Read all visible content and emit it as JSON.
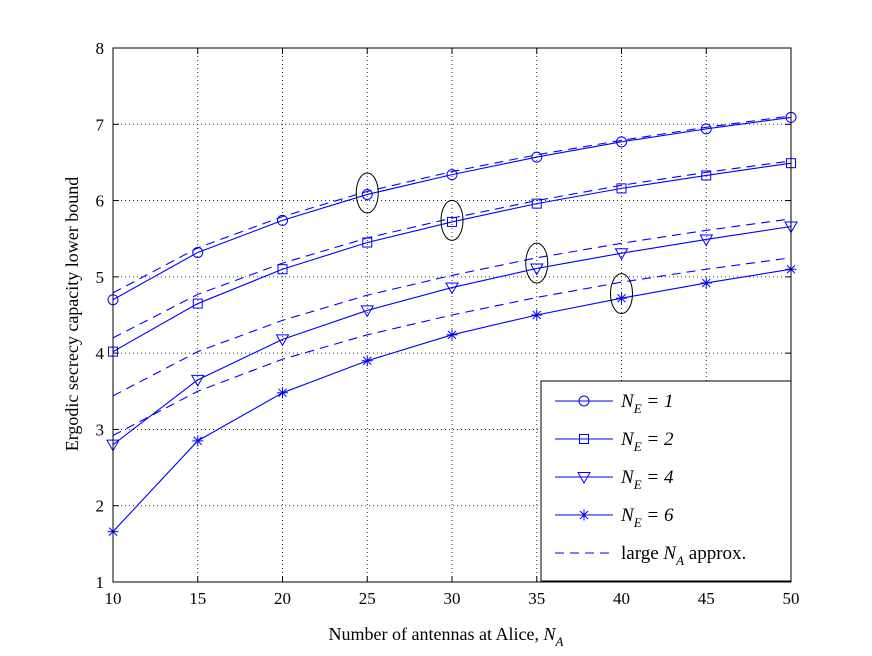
{
  "chart_data": {
    "type": "line",
    "xlabel": "Number of antennas at Alice, N_A",
    "xlabel_parts": {
      "main": "Number of antennas at Alice, ",
      "sym": "N",
      "sub": "A"
    },
    "ylabel": "Ergodic secrecy capacity lower bound",
    "xlim": [
      10,
      50
    ],
    "ylim": [
      1,
      8
    ],
    "xticks": [
      10,
      15,
      20,
      25,
      30,
      35,
      40,
      45,
      50
    ],
    "yticks": [
      1,
      2,
      3,
      4,
      5,
      6,
      7,
      8
    ],
    "grid": true,
    "grid_style": "dotted",
    "legend_position": "bottom-right",
    "line_color": "#0000ff",
    "x": [
      10,
      15,
      20,
      25,
      30,
      35,
      40,
      45,
      50
    ],
    "series": [
      {
        "name": "N_E = 1",
        "sym": "N",
        "sub": "E",
        "rest": " = 1",
        "marker": "circle",
        "style": "solid",
        "values": [
          4.7,
          5.32,
          5.74,
          6.08,
          6.34,
          6.57,
          6.77,
          6.94,
          7.09
        ]
      },
      {
        "name": "N_E = 2",
        "sym": "N",
        "sub": "E",
        "rest": " = 2",
        "marker": "square",
        "style": "solid",
        "values": [
          4.02,
          4.65,
          5.1,
          5.45,
          5.72,
          5.96,
          6.16,
          6.33,
          6.49
        ]
      },
      {
        "name": "N_E = 4",
        "sym": "N",
        "sub": "E",
        "rest": " = 4",
        "marker": "triangle-down",
        "style": "solid",
        "values": [
          2.8,
          3.65,
          4.18,
          4.56,
          4.86,
          5.11,
          5.31,
          5.49,
          5.66
        ]
      },
      {
        "name": "N_E = 6",
        "sym": "N",
        "sub": "E",
        "rest": " = 6",
        "marker": "star",
        "style": "solid",
        "values": [
          1.66,
          2.85,
          3.48,
          3.9,
          4.24,
          4.5,
          4.72,
          4.92,
          5.1
        ]
      },
      {
        "name": "large N_A approx.",
        "pre": "large ",
        "sym": "N",
        "sub": "A",
        "rest": " approx.",
        "marker": "none",
        "style": "dashed",
        "values": [
          4.79,
          5.38,
          5.79,
          6.12,
          6.38,
          6.6,
          6.79,
          6.96,
          7.11
        ]
      },
      {
        "name": "",
        "marker": "none",
        "style": "dashed",
        "legend": false,
        "values": [
          4.2,
          4.77,
          5.18,
          5.51,
          5.77,
          6.0,
          6.2,
          6.37,
          6.52
        ]
      },
      {
        "name": "",
        "marker": "none",
        "style": "dashed",
        "legend": false,
        "values": [
          3.44,
          4.02,
          4.43,
          4.76,
          5.02,
          5.25,
          5.44,
          5.61,
          5.76
        ]
      },
      {
        "name": "",
        "marker": "none",
        "style": "dashed",
        "legend": false,
        "values": [
          2.92,
          3.5,
          3.92,
          4.24,
          4.5,
          4.73,
          4.93,
          5.1,
          5.25
        ]
      }
    ],
    "annotations": [
      {
        "type": "ellipse",
        "x": 25,
        "y": 6.1
      },
      {
        "type": "ellipse",
        "x": 30,
        "y": 5.74
      },
      {
        "type": "ellipse",
        "x": 35,
        "y": 5.18
      },
      {
        "type": "ellipse",
        "x": 40,
        "y": 4.78
      }
    ]
  }
}
